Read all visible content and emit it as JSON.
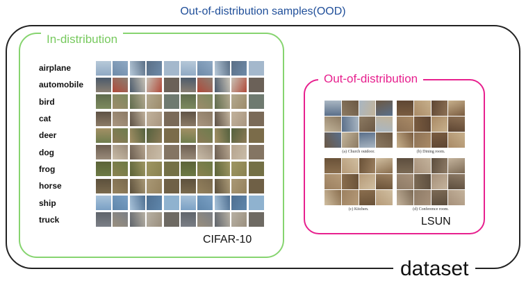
{
  "title": "Out-of-distribution samples(OOD)",
  "dataset_label": "dataset",
  "in_distribution": {
    "title": "In-distribution",
    "dataset_name": "CIFAR-10",
    "classes": [
      "airplane",
      "automobile",
      "bird",
      "cat",
      "deer",
      "dog",
      "frog",
      "horse",
      "ship",
      "truck"
    ],
    "images_per_class": 10
  },
  "out_of_distribution": {
    "title": "Out-of-distribution",
    "dataset_name": "LSUN",
    "panels": [
      {
        "caption": "(a) Church outdoor."
      },
      {
        "caption": "(b) Dining room."
      },
      {
        "caption": "(c) Kitchen."
      },
      {
        "caption": "(d) Conference room."
      }
    ]
  },
  "colors": {
    "title": "#1f4e99",
    "in_distribution": "#77c95e",
    "out_of_distribution": "#e7208e",
    "outer": "#222222"
  }
}
